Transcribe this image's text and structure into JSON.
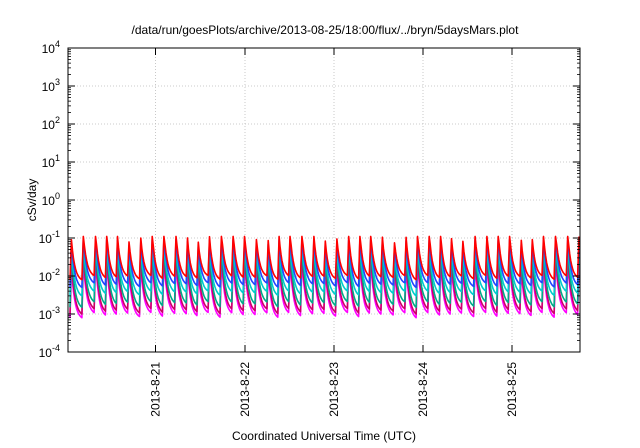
{
  "chart_data": {
    "type": "line",
    "title": "/data/run/goesPlots/archive/2013-08-25/18:00/flux/../bryn/5daysMars.plot",
    "xlabel": "Coordinated Universal Time (UTC)",
    "ylabel": "cSv/day",
    "yscale": "log",
    "ylim": [
      0.0001,
      10000
    ],
    "y_ticks": [
      {
        "base": "10",
        "exp": "4"
      },
      {
        "base": "10",
        "exp": "3"
      },
      {
        "base": "10",
        "exp": "2"
      },
      {
        "base": "10",
        "exp": "1"
      },
      {
        "base": "10",
        "exp": "0"
      },
      {
        "base": "10",
        "exp": "-1"
      },
      {
        "base": "10",
        "exp": "-2"
      },
      {
        "base": "10",
        "exp": "-3"
      },
      {
        "base": "10",
        "exp": "-4"
      }
    ],
    "x_ticks": [
      "2013-8-21",
      "2013-8-22",
      "2013-8-23",
      "2013-8-24",
      "2013-8-25"
    ],
    "grid": true,
    "period_hours": 2.7,
    "series": [
      {
        "color": "#ff00ff",
        "min": 0.0008,
        "max": 0.02
      },
      {
        "color": "#cc0066",
        "min": 0.001,
        "max": 0.03
      },
      {
        "color": "#00aa88",
        "min": 0.0015,
        "max": 0.05
      },
      {
        "color": "#00cccc",
        "min": 0.003,
        "max": 0.06
      },
      {
        "color": "#2244ff",
        "min": 0.005,
        "max": 0.09
      },
      {
        "color": "#ff0000",
        "min": 0.008,
        "max": 0.11
      }
    ]
  }
}
